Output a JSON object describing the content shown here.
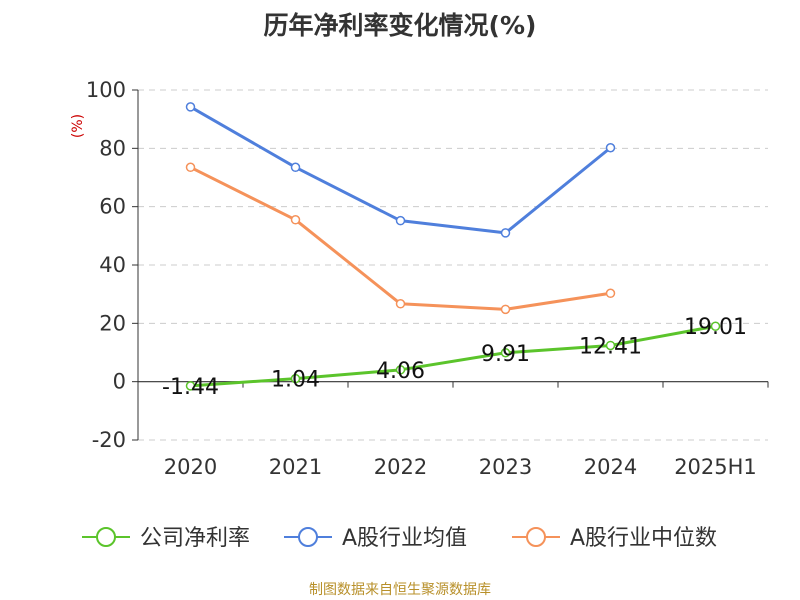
{
  "chart_data": {
    "type": "line",
    "title": "历年净利率变化情况(%)",
    "ylabel": "(%)",
    "xlabel": "",
    "categories": [
      "2020",
      "2021",
      "2022",
      "2023",
      "2024",
      "2025H1"
    ],
    "ylim": [
      -20,
      100
    ],
    "yticks": [
      100,
      80,
      60,
      40,
      20,
      0,
      -20
    ],
    "grid": true,
    "legend_position": "bottom",
    "series": [
      {
        "name": "公司净利率",
        "color": "#5bc42b",
        "values": [
          -1.44,
          1.04,
          4.06,
          9.91,
          12.41,
          19.01
        ],
        "labels": [
          "-1.44",
          "1.04",
          "4.06",
          "9.91",
          "12.41",
          "19.01"
        ]
      },
      {
        "name": "A股行业均值",
        "color": "#4f7fdc",
        "values": [
          94.2,
          73.5,
          55.2,
          51.0,
          80.2,
          null
        ]
      },
      {
        "name": "A股行业中位数",
        "color": "#f5925a",
        "values": [
          73.5,
          55.5,
          26.7,
          24.8,
          30.3,
          null
        ]
      }
    ]
  },
  "source": "制图数据来自恒生聚源数据库"
}
